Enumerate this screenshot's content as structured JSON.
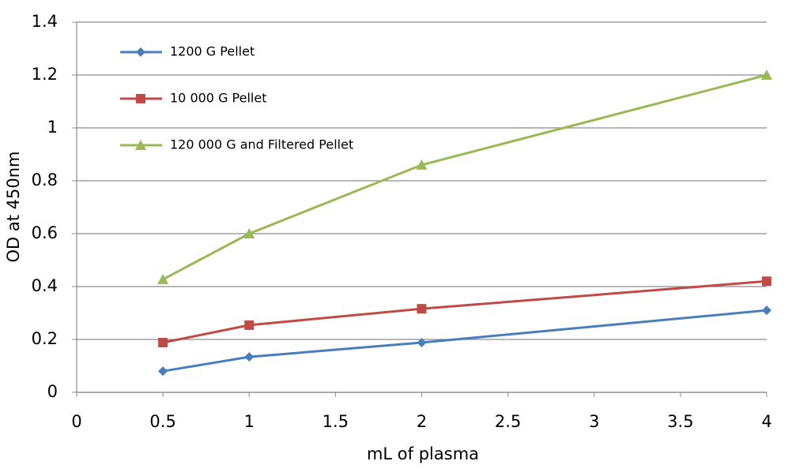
{
  "chart_data": {
    "type": "line",
    "x_label": "mL of plasma",
    "y_label": "OD at 450nm",
    "x": [
      0.5,
      1,
      2,
      4
    ],
    "series": [
      {
        "name": "1200 G Pellet",
        "color": "#4a7ebb",
        "marker": "diamond",
        "values": [
          0.08,
          0.134,
          0.188,
          0.31
        ]
      },
      {
        "name": "10 000 G Pellet",
        "color": "#be4b48",
        "marker": "square",
        "values": [
          0.188,
          0.254,
          0.316,
          0.42
        ]
      },
      {
        "name": "120 000 G and Filtered Pellet",
        "color": "#98b954",
        "marker": "triangle",
        "values": [
          0.427,
          0.6,
          0.86,
          1.2
        ]
      }
    ],
    "xlim": [
      0,
      4
    ],
    "xticks": [
      0,
      0.5,
      1,
      1.5,
      2,
      2.5,
      3,
      3.5,
      4
    ],
    "ylim": [
      0,
      1.4
    ],
    "yticks": [
      0,
      0.2,
      0.4,
      0.6,
      0.8,
      1,
      1.2,
      1.4
    ],
    "grid": true,
    "legend": "upper-left"
  }
}
